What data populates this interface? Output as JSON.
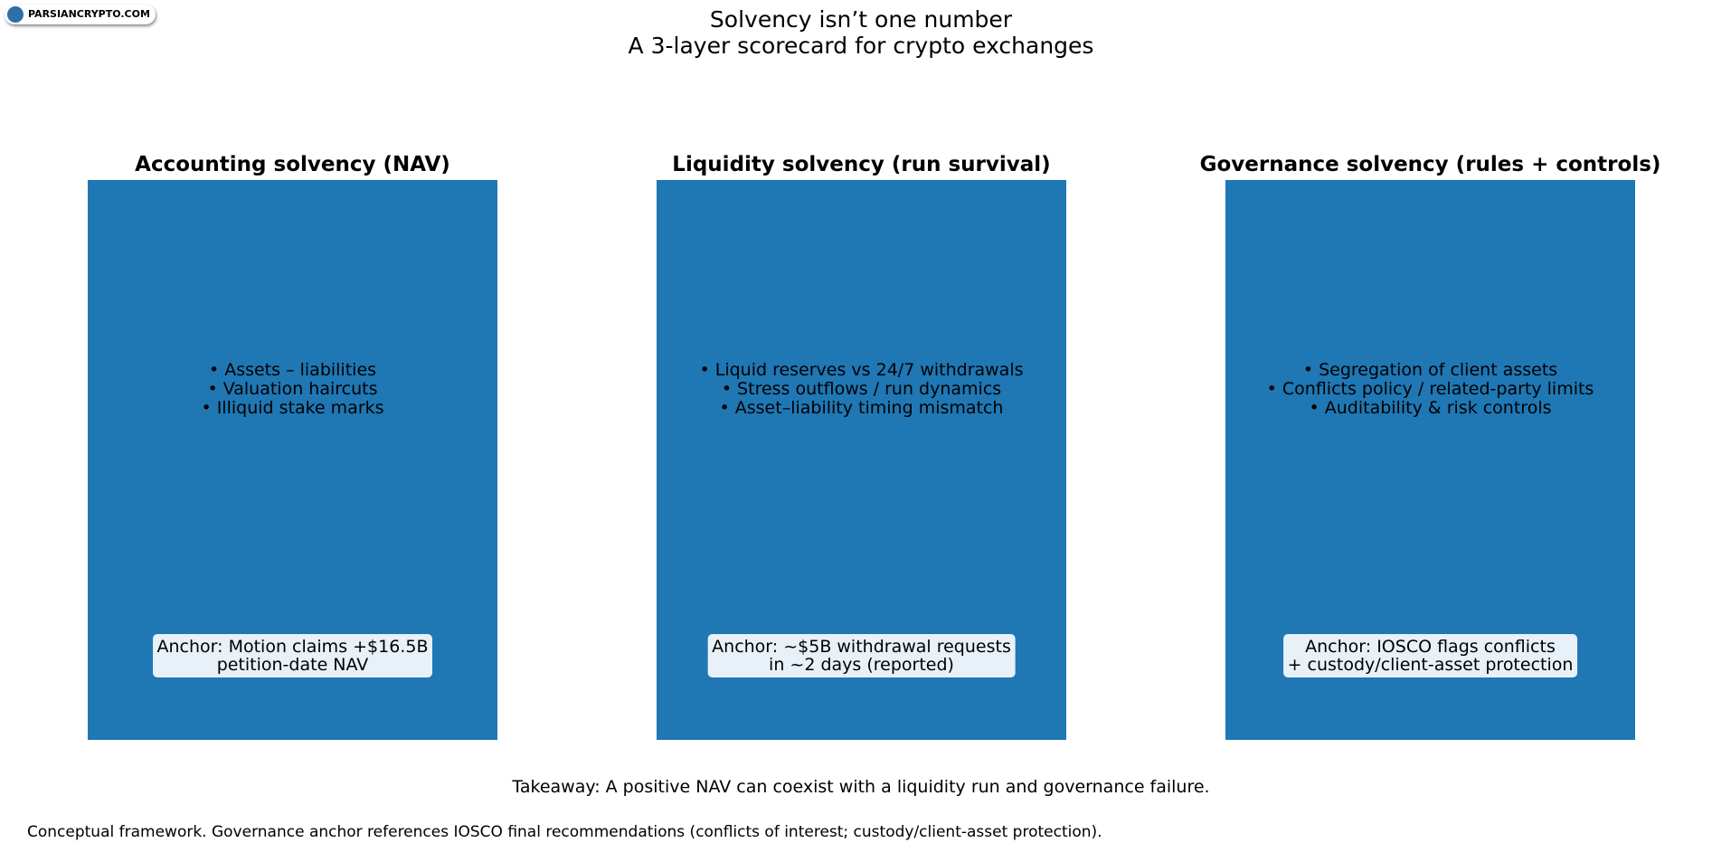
{
  "logo": "PARSIANCRYPTO.COM",
  "header": {
    "title": "Solvency isn’t one number",
    "subtitle": "A 3-layer scorecard for crypto exchanges"
  },
  "panels": [
    {
      "title": "Accounting solvency (NAV)",
      "bullets": [
        "• Assets – liabilities",
        "• Valuation haircuts",
        "• Illiquid stake marks"
      ],
      "anchor": [
        "Anchor: Motion claims +$16.5B",
        "petition-date NAV"
      ]
    },
    {
      "title": "Liquidity solvency (run survival)",
      "bullets": [
        "• Liquid reserves vs 24/7 withdrawals",
        "• Stress outflows / run dynamics",
        "• Asset–liability timing mismatch"
      ],
      "anchor": [
        "Anchor: ~$5B withdrawal requests",
        "in ~2 days (reported)"
      ]
    },
    {
      "title": "Governance solvency (rules + controls)",
      "bullets": [
        "• Segregation of client assets",
        "• Conflicts policy / related-party limits",
        "• Auditability & risk controls"
      ],
      "anchor": [
        "Anchor: IOSCO flags conflicts",
        "+ custody/client-asset protection"
      ]
    }
  ],
  "takeaway": "Takeaway: A positive NAV can coexist with a liquidity run and governance failure.",
  "footnote": "Conceptual framework. Governance anchor references IOSCO final recommendations (conflicts of interest; custody/client-asset protection)."
}
